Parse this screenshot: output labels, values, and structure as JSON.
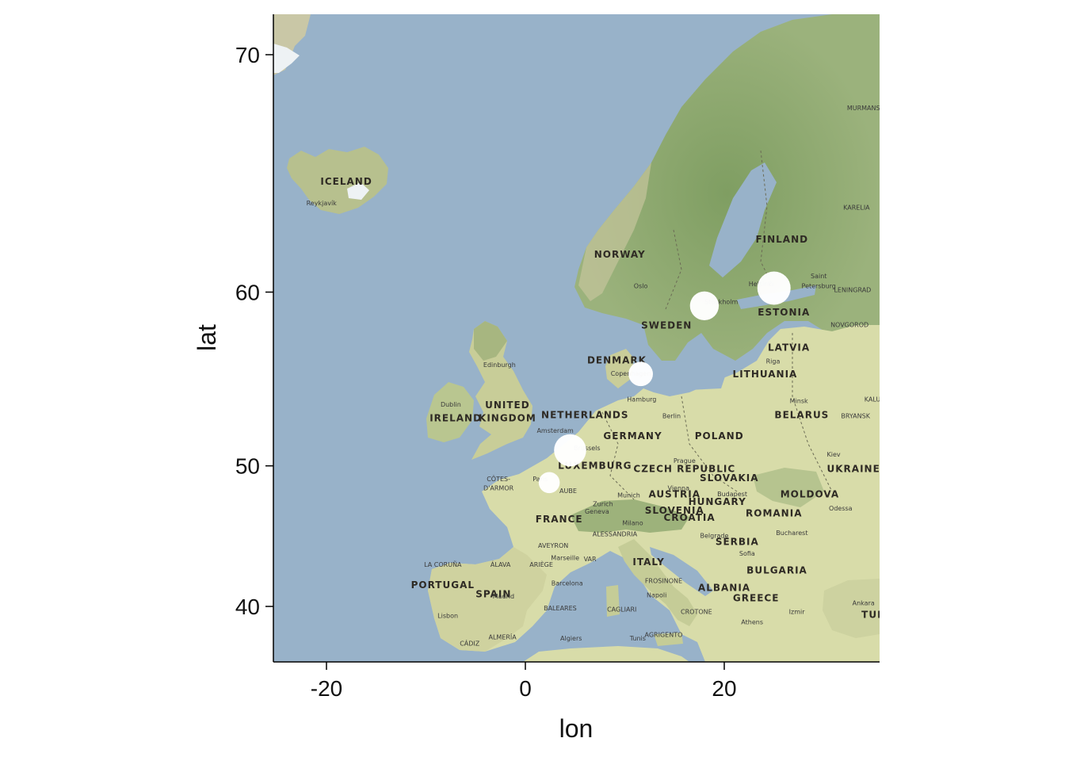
{
  "chart_data": {
    "type": "scatter",
    "xlabel": "lon",
    "ylabel": "lat",
    "xlim": [
      -25.5,
      35.5
    ],
    "ylim": [
      36.6,
      72.1
    ],
    "x_ticks": [
      -20,
      0,
      20
    ],
    "y_ticks": [
      40,
      50,
      60,
      70
    ],
    "x_tick_labels": [
      "-20",
      "0",
      "20"
    ],
    "y_tick_labels": [
      "40",
      "50",
      "60",
      "70"
    ],
    "grid": false,
    "basemap": "terrain tiles",
    "marker_color": "#ffffff",
    "points": [
      {
        "lon": 25.0,
        "lat": 60.2,
        "size": 3
      },
      {
        "lon": 18.0,
        "lat": 59.3,
        "size": 2.6
      },
      {
        "lon": 11.6,
        "lat": 55.6,
        "size": 2.2
      },
      {
        "lon": 4.5,
        "lat": 51.0,
        "size": 2.9
      },
      {
        "lon": 2.4,
        "lat": 48.9,
        "size": 1.9
      }
    ]
  },
  "map_labels": {
    "countries": [
      {
        "text": "ICELAND",
        "lon": -18.0,
        "lat": 65.0
      },
      {
        "text": "NORWAY",
        "lon": 9.5,
        "lat": 61.7
      },
      {
        "text": "SWEDEN",
        "lon": 14.2,
        "lat": 58.1
      },
      {
        "text": "FINLAND",
        "lon": 25.8,
        "lat": 62.4
      },
      {
        "text": "ESTONIA",
        "lon": 26.0,
        "lat": 58.8
      },
      {
        "text": "LATVIA",
        "lon": 26.5,
        "lat": 56.9
      },
      {
        "text": "LITHUANIA",
        "lon": 24.1,
        "lat": 55.4
      },
      {
        "text": "DENMARK",
        "lon": 9.2,
        "lat": 56.2
      },
      {
        "text": "UNITED",
        "lon": -1.8,
        "lat": 53.6
      },
      {
        "text": "KINGDOM",
        "lon": -1.8,
        "lat": 52.8
      },
      {
        "text": "IRELAND",
        "lon": -7.0,
        "lat": 52.8
      },
      {
        "text": "NETHERLANDS",
        "lon": 6.0,
        "lat": 53.0
      },
      {
        "text": "GERMANY",
        "lon": 10.8,
        "lat": 51.7
      },
      {
        "text": "POLAND",
        "lon": 19.5,
        "lat": 51.7
      },
      {
        "text": "BELARUS",
        "lon": 27.8,
        "lat": 53.0
      },
      {
        "text": "UKRAINE",
        "lon": 33.0,
        "lat": 49.6
      },
      {
        "text": "LUXEMBURG",
        "lon": 7.0,
        "lat": 49.8
      },
      {
        "text": "CZECH REPUBLIC",
        "lon": 16.0,
        "lat": 49.6
      },
      {
        "text": "SLOVAKIA",
        "lon": 20.5,
        "lat": 49.0
      },
      {
        "text": "AUSTRIA",
        "lon": 15.0,
        "lat": 47.9
      },
      {
        "text": "HUNGARY",
        "lon": 19.3,
        "lat": 47.4
      },
      {
        "text": "MOLDOVA",
        "lon": 28.6,
        "lat": 47.9
      },
      {
        "text": "SLOVENIA",
        "lon": 15.0,
        "lat": 46.8
      },
      {
        "text": "CROATIA",
        "lon": 16.5,
        "lat": 46.3
      },
      {
        "text": "ROMANIA",
        "lon": 25.0,
        "lat": 46.6
      },
      {
        "text": "FRANCE",
        "lon": 3.4,
        "lat": 46.2
      },
      {
        "text": "SERBIA",
        "lon": 21.3,
        "lat": 44.6
      },
      {
        "text": "ITALY",
        "lon": 12.4,
        "lat": 43.1
      },
      {
        "text": "BULGARIA",
        "lon": 25.3,
        "lat": 42.5
      },
      {
        "text": "ALBANIA",
        "lon": 20.0,
        "lat": 41.2
      },
      {
        "text": "GREECE",
        "lon": 23.2,
        "lat": 40.4
      },
      {
        "text": "PORTUGAL",
        "lon": -8.3,
        "lat": 41.4
      },
      {
        "text": "SPAIN",
        "lon": -3.2,
        "lat": 40.7
      },
      {
        "text": "TUR",
        "lon": 35.0,
        "lat": 39.1
      }
    ],
    "places": [
      {
        "text": "Reykjavík",
        "lon": -20.5,
        "lat": 64.1
      },
      {
        "text": "Oslo",
        "lon": 11.6,
        "lat": 60.2
      },
      {
        "text": "Stockholm",
        "lon": 19.7,
        "lat": 59.4
      },
      {
        "text": "Helsinki",
        "lon": 23.7,
        "lat": 60.3
      },
      {
        "text": "Saint",
        "lon": 29.5,
        "lat": 60.7
      },
      {
        "text": "Petersburg",
        "lon": 29.5,
        "lat": 60.2
      },
      {
        "text": "LENINGRAD",
        "lon": 32.9,
        "lat": 60.0
      },
      {
        "text": "NOVGOROD",
        "lon": 32.6,
        "lat": 58.2
      },
      {
        "text": "KARELIA",
        "lon": 33.3,
        "lat": 63.9
      },
      {
        "text": "MURMANS",
        "lon": 34.0,
        "lat": 68.0
      },
      {
        "text": "Riga",
        "lon": 24.9,
        "lat": 56.2
      },
      {
        "text": "Minsk",
        "lon": 27.5,
        "lat": 53.9
      },
      {
        "text": "BRYANSK",
        "lon": 33.2,
        "lat": 53.0
      },
      {
        "text": "KALU",
        "lon": 34.9,
        "lat": 54.0
      },
      {
        "text": "Kiev",
        "lon": 31.0,
        "lat": 50.6
      },
      {
        "text": "Odessa",
        "lon": 31.7,
        "lat": 47.0
      },
      {
        "text": "Bucharest",
        "lon": 26.8,
        "lat": 45.3
      },
      {
        "text": "Copenhagen",
        "lon": 10.6,
        "lat": 55.5
      },
      {
        "text": "Hamburg",
        "lon": 11.7,
        "lat": 54.0
      },
      {
        "text": "Berlin",
        "lon": 14.7,
        "lat": 53.0
      },
      {
        "text": "Amsterdam",
        "lon": 3.0,
        "lat": 52.1
      },
      {
        "text": "Brussels",
        "lon": 6.2,
        "lat": 51.0
      },
      {
        "text": "Paris",
        "lon": 1.5,
        "lat": 49.0
      },
      {
        "text": "Edinburgh",
        "lon": -2.6,
        "lat": 56.0
      },
      {
        "text": "Dublin",
        "lon": -7.5,
        "lat": 53.7
      },
      {
        "text": "CÔTES-",
        "lon": -2.7,
        "lat": 49.0
      },
      {
        "text": "D'ARMOR",
        "lon": -2.7,
        "lat": 48.4
      },
      {
        "text": "AUBE",
        "lon": 4.3,
        "lat": 48.2
      },
      {
        "text": "Prague",
        "lon": 16.0,
        "lat": 50.2
      },
      {
        "text": "Vienna",
        "lon": 15.4,
        "lat": 48.4
      },
      {
        "text": "Budapest",
        "lon": 20.8,
        "lat": 48.0
      },
      {
        "text": "Munich",
        "lon": 10.4,
        "lat": 47.9
      },
      {
        "text": "Zurich",
        "lon": 7.8,
        "lat": 47.3
      },
      {
        "text": "Geneva",
        "lon": 7.2,
        "lat": 46.8
      },
      {
        "text": "Milano",
        "lon": 10.8,
        "lat": 46.0
      },
      {
        "text": "Belgrade",
        "lon": 19.0,
        "lat": 45.1
      },
      {
        "text": "Sofia",
        "lon": 22.3,
        "lat": 43.8
      },
      {
        "text": "Athens",
        "lon": 22.8,
        "lat": 38.6
      },
      {
        "text": "Izmir",
        "lon": 27.3,
        "lat": 39.4
      },
      {
        "text": "Ankara",
        "lon": 34.0,
        "lat": 40.1
      },
      {
        "text": "ALESSANDRIA",
        "lon": 9.0,
        "lat": 45.2
      },
      {
        "text": "AVEYRON",
        "lon": 2.8,
        "lat": 44.4
      },
      {
        "text": "Marseille",
        "lon": 4.0,
        "lat": 43.5
      },
      {
        "text": "VAR",
        "lon": 6.5,
        "lat": 43.4
      },
      {
        "text": "LA CORUÑA",
        "lon": -8.3,
        "lat": 43.0
      },
      {
        "text": "ÁLAVA",
        "lon": -2.5,
        "lat": 43.0
      },
      {
        "text": "ARIÈGE",
        "lon": 1.6,
        "lat": 43.0
      },
      {
        "text": "Barcelona",
        "lon": 4.2,
        "lat": 41.6
      },
      {
        "text": "Madrid",
        "lon": -2.2,
        "lat": 40.6
      },
      {
        "text": "Lisbon",
        "lon": -7.8,
        "lat": 39.1
      },
      {
        "text": "BALEARES",
        "lon": 3.5,
        "lat": 39.7
      },
      {
        "text": "CAGLIARI",
        "lon": 9.7,
        "lat": 39.6
      },
      {
        "text": "Napoli",
        "lon": 13.2,
        "lat": 40.7
      },
      {
        "text": "FROSINONE",
        "lon": 13.9,
        "lat": 41.8
      },
      {
        "text": "CROTONE",
        "lon": 17.2,
        "lat": 39.4
      },
      {
        "text": "AGRIGENTO",
        "lon": 13.9,
        "lat": 37.6
      },
      {
        "text": "Tunis",
        "lon": 11.3,
        "lat": 37.3
      },
      {
        "text": "Algiers",
        "lon": 4.6,
        "lat": 37.3
      },
      {
        "text": "ALMERÍA",
        "lon": -2.3,
        "lat": 37.4
      },
      {
        "text": "CÁDIZ",
        "lon": -5.6,
        "lat": 36.9
      }
    ]
  }
}
